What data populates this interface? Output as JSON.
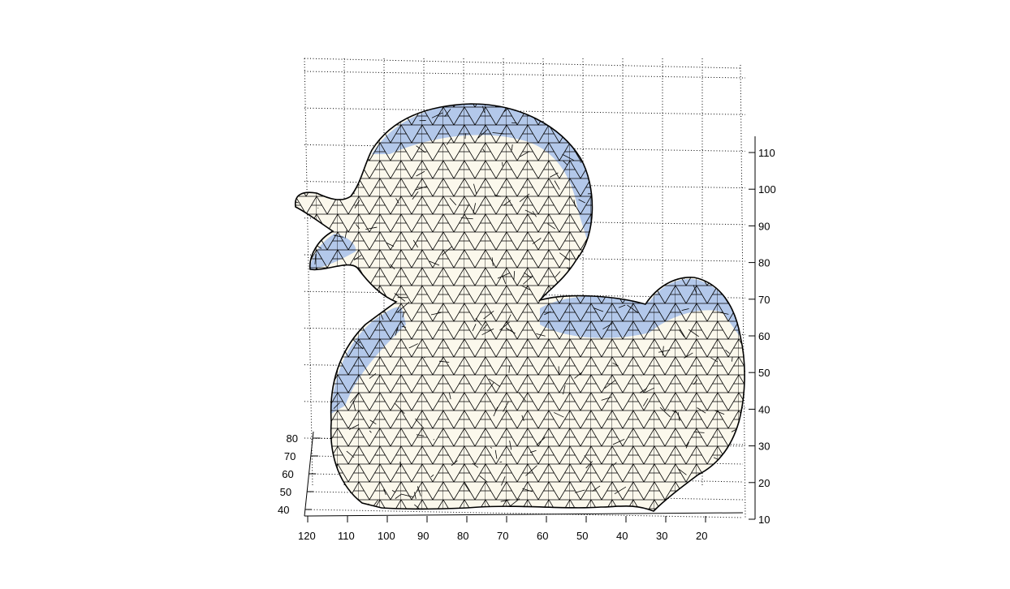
{
  "chart_data": {
    "type": "surface-mesh-3d",
    "title": "",
    "xlabel": "",
    "ylabel": "",
    "zlabel": "",
    "x_ticks": [
      120,
      110,
      100,
      90,
      80,
      70,
      60,
      50,
      40,
      30,
      20
    ],
    "y_ticks": [
      40,
      50,
      60,
      70,
      80
    ],
    "z_ticks": [
      10,
      20,
      30,
      40,
      50,
      60,
      70,
      80,
      90,
      100,
      110
    ],
    "xlim": [
      10,
      120
    ],
    "ylim": [
      35,
      85
    ],
    "zlim": [
      10,
      115
    ],
    "grid": true,
    "colors": {
      "face": "#fbf8ec",
      "shade": "#b3c8ea",
      "edge": "#000000",
      "grid": "#000000"
    }
  }
}
